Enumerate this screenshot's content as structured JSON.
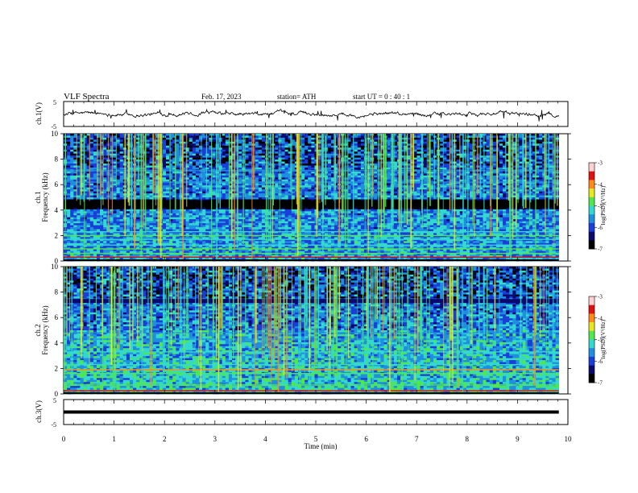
{
  "header": {
    "title": "VLF  Spectra",
    "date": "Feb. 17, 2023",
    "station": "station= ATH",
    "start": "start  UT  =   0  : 40 : 1"
  },
  "xaxis": {
    "label": "Time  (min)",
    "ticks": [
      "0",
      "1",
      "2",
      "3",
      "4",
      "5",
      "6",
      "7",
      "8",
      "9",
      "10"
    ],
    "range": [
      0,
      10
    ],
    "data_end": 9.82
  },
  "colorbar": {
    "label": "log(PSD)(V²/Hz)",
    "ticks": [
      "-3",
      "-4",
      "-5",
      "-6",
      "-7"
    ],
    "range": [
      -7,
      -3
    ]
  },
  "colors": {
    "cmap": [
      "#000000",
      "#0a0a6e",
      "#1a3fd8",
      "#1f8fdf",
      "#33d9d0",
      "#4fe84f",
      "#e8e820",
      "#ff8c1a",
      "#e01010",
      "#ffd0d0"
    ]
  },
  "chart_data": [
    {
      "type": "line",
      "id": "ch1-waveform",
      "ylabel": "ch.1(V)",
      "ylim": [
        -5,
        5
      ],
      "yticks": [
        "5",
        "-5"
      ],
      "baseline": 0,
      "note_values": "waveform centered near 0 V with amplitude about 1 V and spikes"
    },
    {
      "type": "heatmap",
      "id": "ch1-spectrogram",
      "ylabel": [
        "ch.1",
        "Frequency  (kHz)"
      ],
      "ylim": [
        0,
        10
      ],
      "yticks": [
        "0",
        "2",
        "4",
        "6",
        "8",
        "10"
      ],
      "bands_khz": [
        {
          "f": 0.3,
          "level": -3.6
        },
        {
          "f": 0.6,
          "level": -4.8
        },
        {
          "f": 0.95,
          "level": -5.0
        },
        {
          "f": 1.25,
          "level": -5.2
        },
        {
          "f": 1.7,
          "level": -5.1
        },
        {
          "f": 2.0,
          "level": -5.0
        },
        {
          "f": 2.3,
          "level": -5.2
        },
        {
          "f": 4.35,
          "level": -6.9
        },
        {
          "f": 4.6,
          "level": -6.9
        },
        {
          "f": 6.2,
          "level": -5.8
        },
        {
          "f": 7.1,
          "level": -5.8
        }
      ]
    },
    {
      "type": "heatmap",
      "id": "ch2-spectrogram",
      "ylabel": [
        "ch.2",
        "Frequency  (kHz)"
      ],
      "ylim": [
        0,
        10
      ],
      "yticks": [
        "0",
        "2",
        "4",
        "6",
        "8",
        "10"
      ],
      "bands_khz": [
        {
          "f": 0.25,
          "level": -3.8
        },
        {
          "f": 0.7,
          "level": -5.0
        },
        {
          "f": 1.6,
          "level": -4.9
        },
        {
          "f": 1.9,
          "level": -4.0
        },
        {
          "f": 2.3,
          "level": -5.1
        },
        {
          "f": 3.3,
          "level": -5.3
        },
        {
          "f": 4.3,
          "level": -5.4
        },
        {
          "f": 4.8,
          "level": -5.6
        },
        {
          "f": 7.3,
          "level": -6.6
        }
      ]
    },
    {
      "type": "line",
      "id": "ch3-waveform",
      "ylabel": "ch.3(V)",
      "ylim": [
        -5,
        5
      ],
      "yticks": [
        "5",
        "-5"
      ],
      "values": [
        {
          "x": 0,
          "y": 0
        },
        {
          "x": 9.82,
          "y": 0
        }
      ]
    }
  ]
}
